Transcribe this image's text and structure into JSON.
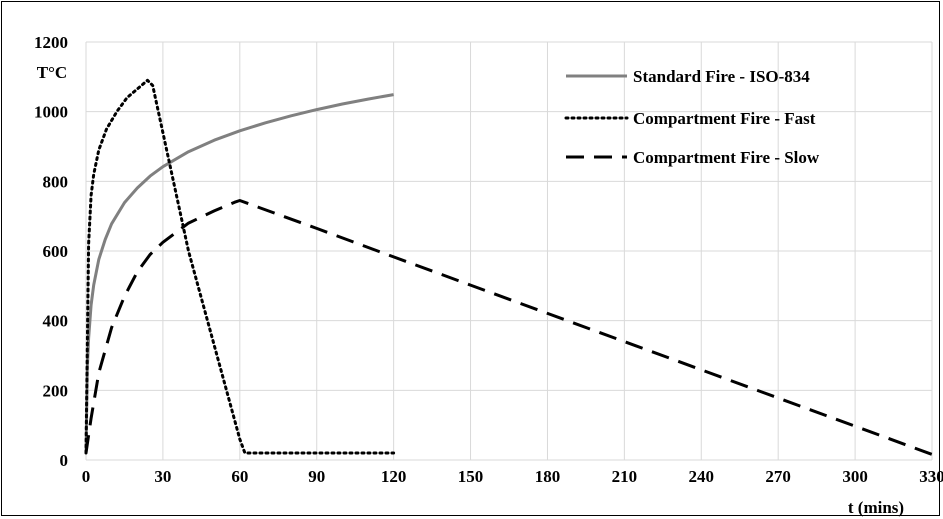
{
  "chart_data": {
    "type": "line",
    "title": "",
    "xlabel": "t (mins)",
    "ylabel": "T°C",
    "xlim": [
      0,
      330
    ],
    "ylim": [
      0,
      1200
    ],
    "x_ticks": [
      0,
      30,
      60,
      90,
      120,
      150,
      180,
      210,
      240,
      270,
      300,
      330
    ],
    "y_ticks": [
      0,
      200,
      400,
      600,
      800,
      1000,
      1200
    ],
    "grid": true,
    "legend_position": "top-right",
    "series": [
      {
        "name": "Standard Fire - ISO-834",
        "style": "solid",
        "color": "#808080",
        "x": [
          0,
          0.5,
          1,
          2,
          3,
          5,
          7.5,
          10,
          15,
          20,
          25,
          30,
          40,
          50,
          60,
          70,
          80,
          90,
          100,
          110,
          120
        ],
        "y": [
          20,
          262,
          349,
          445,
          502,
          576,
          633,
          678,
          739,
          781,
          815,
          842,
          885,
          918,
          945,
          968,
          988,
          1006,
          1022,
          1036,
          1049
        ]
      },
      {
        "name": "Compartment Fire - Fast",
        "style": "dotted",
        "color": "#000000",
        "x": [
          0,
          1,
          2,
          3,
          5,
          8,
          12,
          16,
          20,
          24,
          26,
          40,
          60,
          62,
          80,
          100,
          120
        ],
        "y": [
          20,
          620,
          760,
          820,
          890,
          950,
          1000,
          1040,
          1065,
          1090,
          1075,
          600,
          60,
          20,
          20,
          20,
          20
        ]
      },
      {
        "name": "Compartment Fire - Slow",
        "style": "dashed",
        "color": "#000000",
        "x": [
          0,
          2,
          5,
          10,
          15,
          20,
          25,
          30,
          40,
          50,
          58,
          60,
          90,
          120,
          150,
          180,
          210,
          240,
          270,
          300,
          330
        ],
        "y": [
          20,
          120,
          250,
          380,
          470,
          540,
          590,
          625,
          680,
          715,
          740,
          745,
          665,
          583,
          502,
          421,
          340,
          259,
          178,
          97,
          16
        ]
      }
    ]
  }
}
